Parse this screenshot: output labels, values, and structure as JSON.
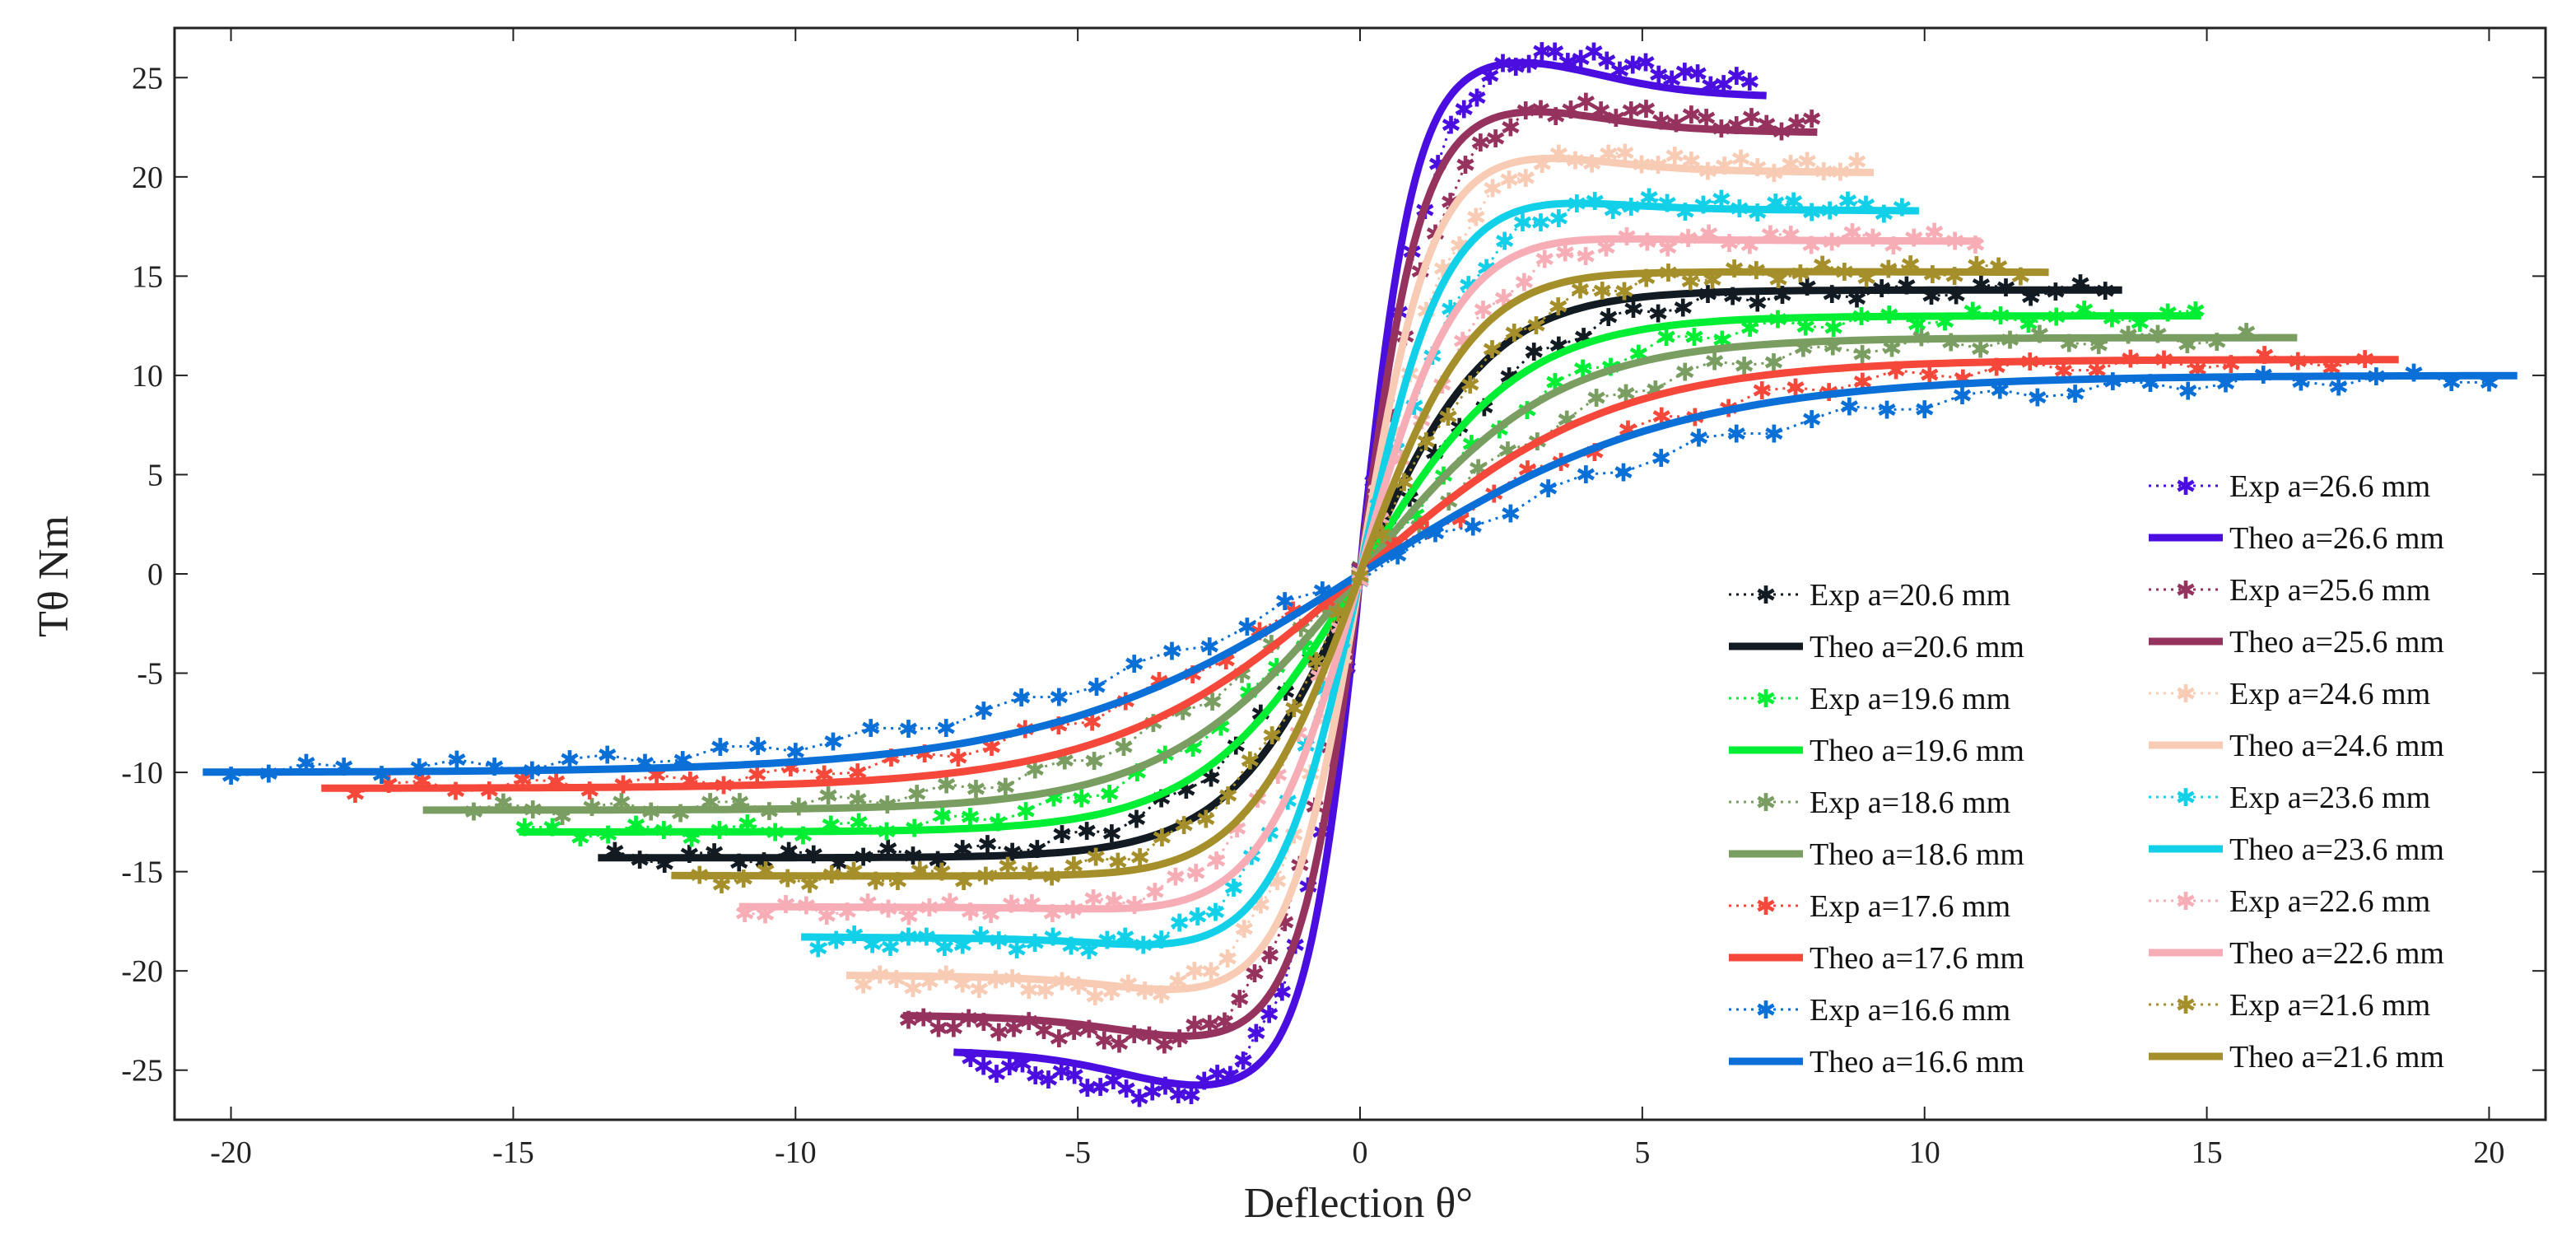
{
  "chart_data": {
    "type": "line",
    "title": "",
    "xlabel": "Deflection θ°",
    "ylabel": "Tθ Nm",
    "xlim": [
      -21,
      21
    ],
    "ylim": [
      -27.5,
      27.5
    ],
    "xticks": [
      -20,
      -15,
      -10,
      -5,
      0,
      5,
      10,
      15,
      20
    ],
    "yticks": [
      -25,
      -20,
      -15,
      -10,
      -5,
      0,
      5,
      10,
      15,
      20,
      25
    ],
    "grid": false,
    "legend_position": "bottom-right (two columns)",
    "series": [
      {
        "a": 20.6,
        "color": "#121a22",
        "exp_name": "Exp a=20.6 mm",
        "theo_name": "Theo a=20.6 mm",
        "plateau": 14.3,
        "hump": 0.0,
        "xmax": 13.5,
        "exp_xmax": 13.2
      },
      {
        "a": 19.6,
        "color": "#00ee33",
        "exp_name": "Exp a=19.6 mm",
        "theo_name": "Theo a=19.6 mm",
        "plateau": 13.0,
        "hump": 0.0,
        "xmax": 14.9,
        "exp_xmax": 14.8
      },
      {
        "a": 18.6,
        "color": "#7a9e62",
        "exp_name": "Exp a=18.6 mm",
        "theo_name": "Theo a=18.6 mm",
        "plateau": 11.9,
        "hump": 0.0,
        "xmax": 16.6,
        "exp_xmax": 15.7
      },
      {
        "a": 17.6,
        "color": "#f5483a",
        "exp_name": "Exp a=17.6 mm",
        "theo_name": "Theo a=17.6 mm",
        "plateau": 10.8,
        "hump": 0.0,
        "xmax": 18.4,
        "exp_xmax": 17.8
      },
      {
        "a": 16.6,
        "color": "#0a6fd6",
        "exp_name": "Exp a=16.6 mm",
        "theo_name": "Theo a=16.6 mm",
        "plateau": 10.0,
        "hump": 0.0,
        "xmax": 20.5,
        "exp_xmax": 20.0
      },
      {
        "a": 26.6,
        "color": "#4a0fe0",
        "exp_name": "Exp a=26.6 mm",
        "theo_name": "Theo a=26.6 mm",
        "plateau": 24.6,
        "hump": 1.5,
        "xmax": 7.2,
        "exp_xmax": 6.9
      },
      {
        "a": 25.6,
        "color": "#96325e",
        "exp_name": "Exp a=25.6 mm",
        "theo_name": "Theo a=25.6 mm",
        "plateau": 22.6,
        "hump": 1.0,
        "xmax": 8.1,
        "exp_xmax": 8.0
      },
      {
        "a": 24.6,
        "color": "#f8cbb4",
        "exp_name": "Exp a=24.6 mm",
        "theo_name": "Theo a=24.6 mm",
        "plateau": 20.5,
        "hump": 0.8,
        "xmax": 9.1,
        "exp_xmax": 8.8
      },
      {
        "a": 23.6,
        "color": "#11d0e8",
        "exp_name": "Exp a=23.6 mm",
        "theo_name": "Theo a=23.6 mm",
        "plateau": 18.5,
        "hump": 0.6,
        "xmax": 9.9,
        "exp_xmax": 9.6
      },
      {
        "a": 22.6,
        "color": "#f7adb6",
        "exp_name": "Exp a=22.6 mm",
        "theo_name": "Theo a=22.6 mm",
        "plateau": 16.9,
        "hump": 0.4,
        "xmax": 11.0,
        "exp_xmax": 10.9
      },
      {
        "a": 21.6,
        "color": "#a58f2a",
        "exp_name": "Exp a=21.6 mm",
        "theo_name": "Theo a=21.6 mm",
        "plateau": 15.3,
        "hump": 0.3,
        "xmax": 12.2,
        "exp_xmax": 11.7
      }
    ],
    "legend_columns": [
      [
        "Exp a=20.6 mm",
        "Theo a=20.6 mm",
        "Exp a=19.6 mm",
        "Theo a=19.6 mm",
        "Exp a=18.6 mm",
        "Theo a=18.6 mm",
        "Exp a=17.6 mm",
        "Theo a=17.6 mm",
        "Exp a=16.6 mm",
        "Theo a=16.6 mm"
      ],
      [
        "Exp a=26.6 mm",
        "Theo a=26.6 mm",
        "Exp a=25.6 mm",
        "Theo a=25.6 mm",
        "Exp a=24.6 mm",
        "Theo a=24.6 mm",
        "Exp a=23.6 mm",
        "Theo a=23.6 mm",
        "Exp a=22.6 mm",
        "Theo a=22.6 mm",
        "Exp a=21.6 mm",
        "Theo a=21.6 mm"
      ]
    ]
  }
}
